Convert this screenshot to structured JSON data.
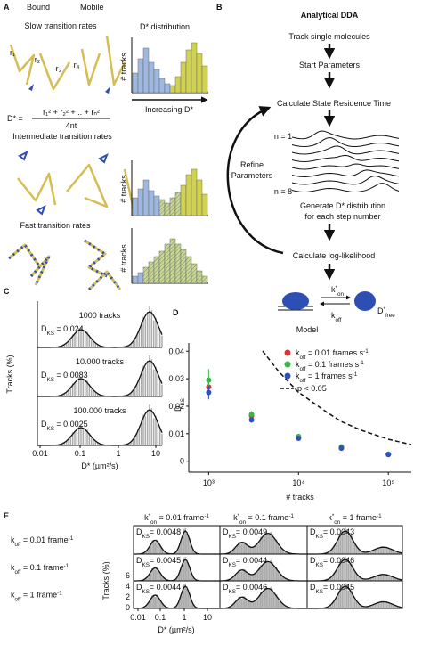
{
  "A": {
    "label": "A",
    "bound": "Bound",
    "mobile": "Mobile",
    "slow": "Slow transition rates",
    "r": [
      "r₁",
      "r₂",
      "r₃",
      "r₄"
    ],
    "formula": {
      "lhs": "D* =",
      "numerator": "r₁² + r₂² + .. + rₙ²",
      "denominator": "4nt"
    },
    "hist_title": "D* distribution",
    "y_label": "# tracks",
    "arrow_label": "Increasing D*",
    "intermediate": "Intermediate transition rates",
    "fast": "Fast transition rates"
  },
  "B": {
    "label": "B",
    "title": "Analytical DDA",
    "steps": [
      "Track single molecules",
      "Start Parameters",
      "Calculate State Residence Time"
    ],
    "n_first": "n = 1",
    "n_last": "n = 8",
    "refine": [
      "Refine",
      "Parameters"
    ],
    "generate": [
      "Generate D* distribution",
      "for each step number"
    ],
    "loglik": "Calculate log-likelihood",
    "model": "Model",
    "kon": [
      "k",
      "*",
      "on"
    ],
    "koff": [
      "k",
      "off"
    ],
    "dfree": [
      "D",
      "*",
      "free"
    ]
  },
  "C": {
    "label": "C",
    "panels": [
      {
        "tracks": "1000 tracks",
        "dks": [
          "D",
          "KS",
          " = 0.024"
        ]
      },
      {
        "tracks": "10.000 tracks",
        "dks": [
          "D",
          "KS",
          " = 0.0083"
        ]
      },
      {
        "tracks": "100.000 tracks",
        "dks": [
          "D",
          "KS",
          " = 0.0025"
        ]
      }
    ],
    "y_label": "Tracks (%)",
    "x_ticks": [
      "0.01",
      "0.1",
      "1",
      "10"
    ],
    "x_label": "D* (µm²/s)"
  },
  "D": {
    "label": "D",
    "type": "scatter",
    "y_label": [
      "D",
      "KS"
    ],
    "x_label": "# tracks",
    "log_x": true,
    "xlim": [
      600,
      180000
    ],
    "xticks": [
      {
        "value": 1000,
        "label": "10³"
      },
      {
        "value": 10000,
        "label": "10⁴"
      },
      {
        "value": 100000,
        "label": "10⁵"
      }
    ],
    "ylim": [
      -0.004,
      0.043
    ],
    "yticks": [
      0,
      0.01,
      0.02,
      0.03,
      0.04
    ],
    "x": [
      1000,
      3000,
      10000,
      30000,
      100000
    ],
    "series": [
      {
        "name": [
          "k",
          "off",
          " = 0.01 frames s",
          "-1"
        ],
        "color": "#e03030",
        "values": [
          0.027,
          0.0165,
          0.0085,
          0.005,
          0.0025
        ],
        "errors": [
          0.003,
          0.0012,
          0.0006,
          0.0004,
          0.0003
        ]
      },
      {
        "name": [
          "k",
          "off",
          " = 0.1 frames s",
          "-1"
        ],
        "color": "#3cb44b",
        "values": [
          0.0295,
          0.017,
          0.009,
          0.0052,
          0.0026
        ],
        "errors": [
          0.004,
          0.0012,
          0.0006,
          0.0004,
          0.0003
        ]
      },
      {
        "name": [
          "k",
          "off",
          " = 1 frames s",
          "-1"
        ],
        "color": "#3050c0",
        "values": [
          0.025,
          0.015,
          0.0083,
          0.0047,
          0.0024
        ],
        "errors": [
          0.0025,
          0.001,
          0.0006,
          0.0004,
          0.0003
        ]
      }
    ],
    "threshold": "p < 0.05"
  },
  "E": {
    "label": "E",
    "columns": [
      [
        "k",
        "*",
        "on",
        " = 0.01 frame",
        "-1"
      ],
      [
        "k",
        "*",
        "on",
        " = 0.1 frame",
        "-1"
      ],
      [
        "k",
        "*",
        "on",
        " = 1 frame",
        "-1"
      ]
    ],
    "rows": [
      [
        "k",
        "off",
        " = 0.01 frame",
        "-1"
      ],
      [
        "k",
        "off",
        " = 0.1 frame",
        "-1"
      ],
      [
        "k",
        "off",
        " = 1 frame",
        "-1"
      ]
    ],
    "cells": [
      [
        [
          "D",
          "KS",
          "= 0.0048"
        ],
        [
          "D",
          "KS",
          "= 0.0049"
        ],
        [
          "D",
          "KS",
          "= 0.0043"
        ]
      ],
      [
        [
          "D",
          "KS",
          "= 0.0045"
        ],
        [
          "D",
          "KS",
          "= 0.0044"
        ],
        [
          "D",
          "KS",
          "= 0.0046"
        ]
      ],
      [
        [
          "D",
          "KS",
          "= 0.0044"
        ],
        [
          "D",
          "KS",
          "= 0.0046"
        ],
        [
          "D",
          "KS",
          "= 0.0045"
        ]
      ]
    ],
    "y_label": "Tracks (%)",
    "y_ticks": [
      "6",
      "4",
      "2",
      "0"
    ],
    "x_ticks": [
      "0.01",
      "0.1",
      "1",
      "10"
    ],
    "x_label": "D* (µm²/s)"
  }
}
